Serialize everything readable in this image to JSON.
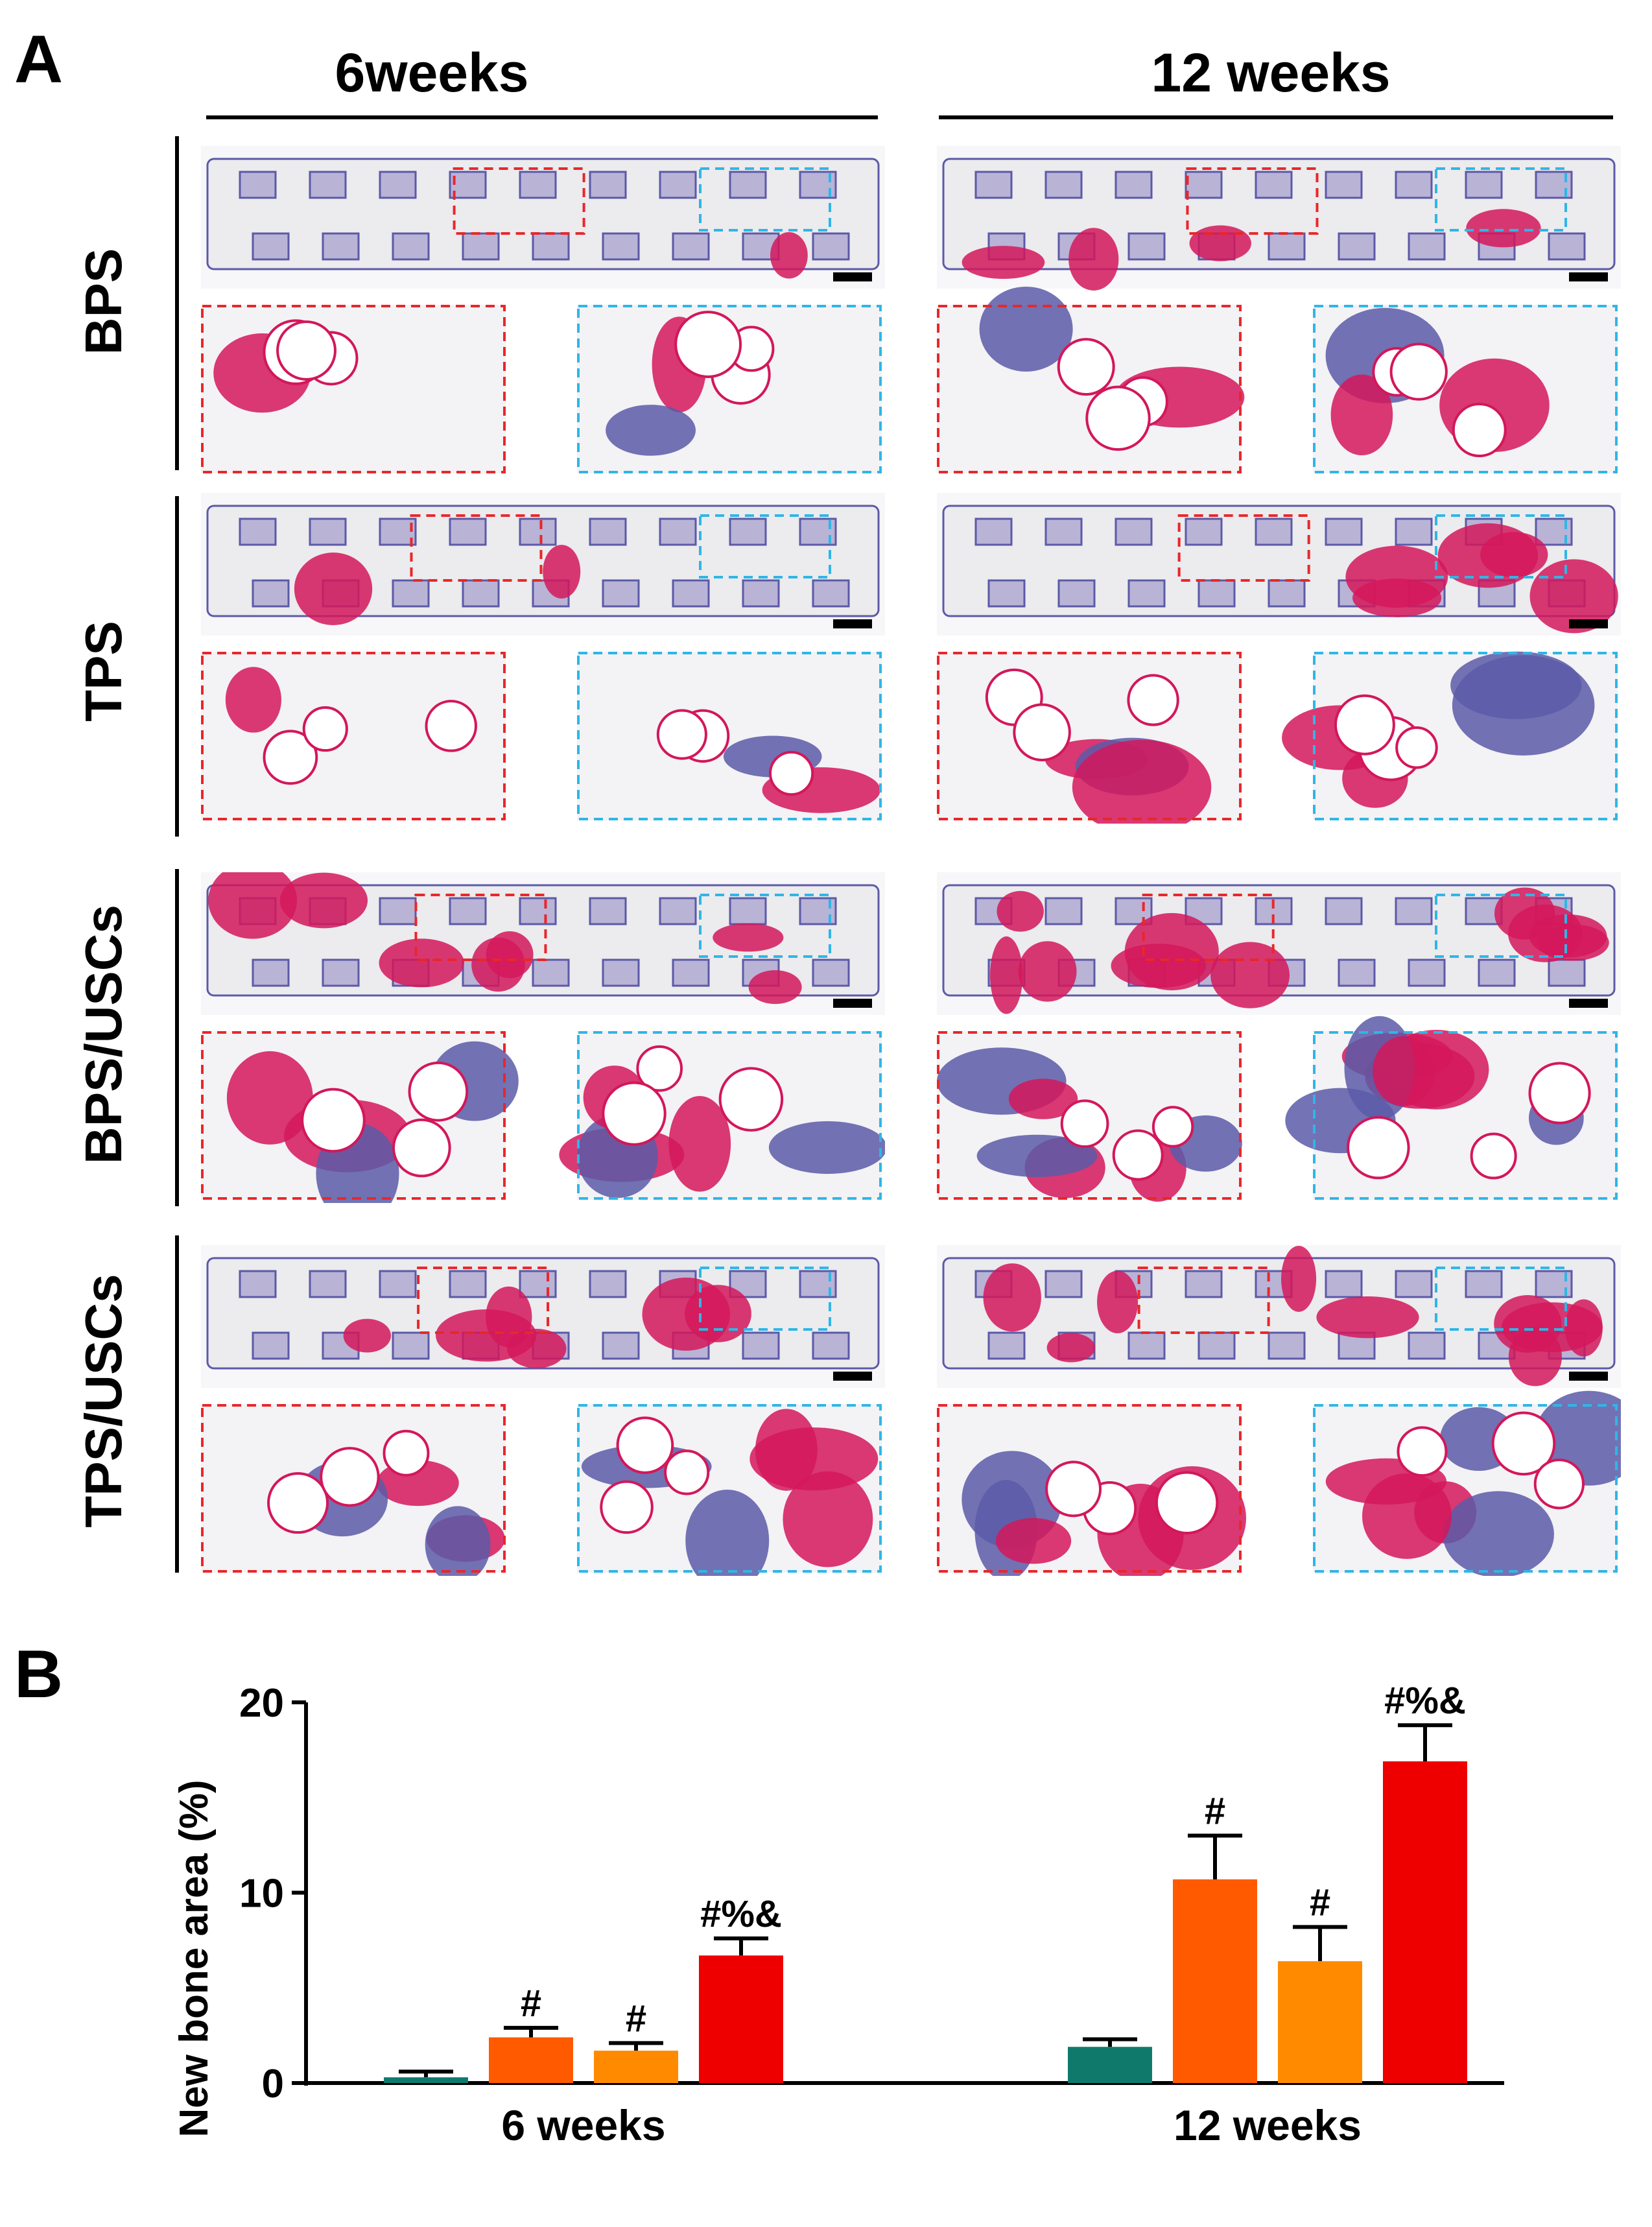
{
  "panel_a": {
    "letter": "A",
    "columns": [
      "6weeks",
      "12 weeks"
    ],
    "rows": [
      "BPS",
      "TPS",
      "BPS/USCs",
      "TPS/USCs"
    ]
  },
  "panel_b": {
    "letter": "B"
  },
  "colors": {
    "stain_pink": "#d3175a",
    "stain_purple": "#5b5aa8",
    "background_gray": "#ecebed",
    "roi_red": "#e8272b",
    "roi_blue": "#2fb6e6"
  },
  "chart_data": {
    "type": "bar",
    "categories": [
      "6 weeks",
      "12 weeks"
    ],
    "ylabel": "New bone area (%)",
    "xlabel": "",
    "ylim": [
      0,
      20
    ],
    "yticks": [
      0,
      10,
      20
    ],
    "series": [
      {
        "color": "#0f7a6c",
        "values": [
          0.3,
          1.9
        ],
        "errors": [
          0.3,
          0.4
        ],
        "annotations": [
          "",
          ""
        ]
      },
      {
        "color": "#ff5a00",
        "values": [
          2.4,
          10.7
        ],
        "errors": [
          0.5,
          2.3
        ],
        "annotations": [
          "#",
          "#"
        ]
      },
      {
        "color": "#ff8a00",
        "values": [
          1.7,
          6.4
        ],
        "errors": [
          0.4,
          1.8
        ],
        "annotations": [
          "#",
          "#"
        ]
      },
      {
        "color": "#ee0000",
        "values": [
          6.7,
          16.9
        ],
        "errors": [
          0.9,
          1.9
        ],
        "annotations": [
          "#%&",
          "#%&"
        ]
      }
    ]
  }
}
